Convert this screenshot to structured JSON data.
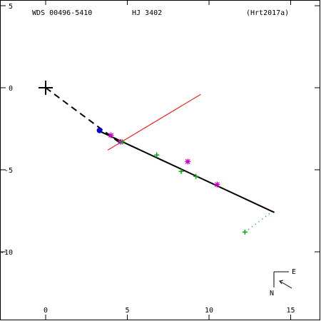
{
  "header": {
    "left": "WDS 00496-5410",
    "center": "HJ 3402",
    "right": "(Hrt2017a)"
  },
  "compass": {
    "east_label": "E",
    "north_label": "N"
  },
  "chart_data": {
    "type": "scatter",
    "xlim": [
      -2.5,
      17
    ],
    "ylim": [
      5,
      -14
    ],
    "x_ticks": [
      0,
      5,
      10,
      15
    ],
    "y_ticks": [
      5,
      0,
      -5,
      -10
    ],
    "x_tick_labels": [
      "0",
      "5",
      "10",
      "15"
    ],
    "y_tick_labels": [
      "5",
      "0",
      "-5",
      "-10"
    ],
    "primary": {
      "x": 0,
      "y": 0
    },
    "orbit_line": {
      "points": [
        [
          3.2,
          -2.6
        ],
        [
          14.0,
          -7.6
        ]
      ],
      "color": "#000000"
    },
    "origin_link": {
      "points": [
        [
          0,
          0
        ],
        [
          4.6,
          -3.4
        ]
      ],
      "color": "#000000"
    },
    "red_line": {
      "points": [
        [
          3.8,
          -3.8
        ],
        [
          9.5,
          -0.4
        ]
      ],
      "color": "#ff0000"
    },
    "green_dotted": {
      "points": [
        [
          12.2,
          -8.8
        ],
        [
          13.8,
          -7.6
        ]
      ],
      "color": "#00aa00"
    },
    "observations": [
      {
        "x": 3.3,
        "y": -2.6,
        "marker": "dot",
        "color": "#0000cc"
      },
      {
        "x": 4.0,
        "y": -2.9,
        "marker": "star",
        "color": "#cc00cc"
      },
      {
        "x": 4.6,
        "y": -3.3,
        "marker": "star",
        "color": "#cc00cc"
      },
      {
        "x": 4.7,
        "y": -3.3,
        "marker": "plus",
        "color": "#00aa00"
      },
      {
        "x": 6.8,
        "y": -4.1,
        "marker": "plus",
        "color": "#00aa00"
      },
      {
        "x": 8.7,
        "y": -4.5,
        "marker": "star",
        "color": "#cc00cc"
      },
      {
        "x": 8.3,
        "y": -5.1,
        "marker": "plus",
        "color": "#00aa00"
      },
      {
        "x": 9.2,
        "y": -5.4,
        "marker": "plus",
        "color": "#00aa00"
      },
      {
        "x": 10.5,
        "y": -5.9,
        "marker": "star",
        "color": "#cc00cc"
      },
      {
        "x": 12.2,
        "y": -8.8,
        "marker": "plus",
        "color": "#00aa00"
      }
    ]
  }
}
